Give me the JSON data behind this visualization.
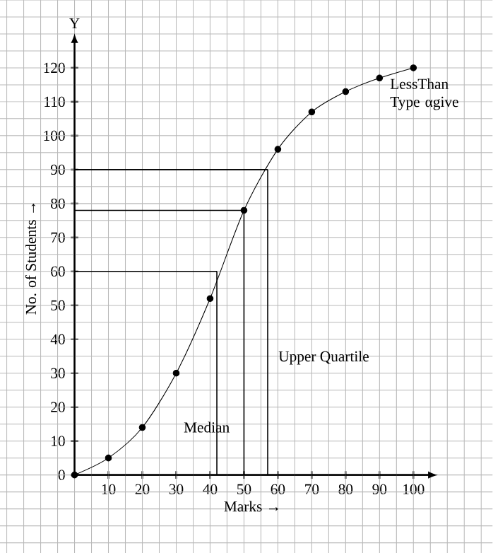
{
  "chart_data": {
    "type": "line",
    "xlabel": "Marks →",
    "ylabel": "No. of Students →",
    "annotations": [
      "Y"
    ],
    "x": [
      0,
      10,
      20,
      30,
      40,
      50,
      60,
      70,
      80,
      90,
      100
    ],
    "series": [
      {
        "name": "LessThan Type αgive",
        "color": "#000000",
        "values": [
          0,
          5,
          14,
          30,
          52,
          78,
          96,
          107,
          113,
          117,
          120
        ]
      }
    ],
    "xlim": [
      0,
      105
    ],
    "ylim": [
      0,
      128
    ],
    "xticks": [
      10,
      20,
      30,
      40,
      50,
      60,
      70,
      80,
      90,
      100
    ],
    "yticks": [
      0,
      10,
      20,
      30,
      40,
      50,
      60,
      70,
      80,
      90,
      100,
      110,
      120
    ],
    "ref_lines": [
      {
        "axis": "x",
        "value": 42,
        "label": "Median",
        "color": "#000000"
      },
      {
        "axis": "x",
        "value": 50,
        "color": "#000000"
      },
      {
        "axis": "x",
        "value": 57,
        "label": "Upper Quartile",
        "color": "#000000"
      },
      {
        "axis": "y",
        "value": 60,
        "color": "#000000"
      },
      {
        "axis": "y",
        "value": 78,
        "color": "#000000"
      },
      {
        "axis": "y",
        "value": 90,
        "color": "#000000"
      }
    ],
    "grid": true,
    "marker": "circle",
    "line_style": "solid",
    "legend": false
  }
}
